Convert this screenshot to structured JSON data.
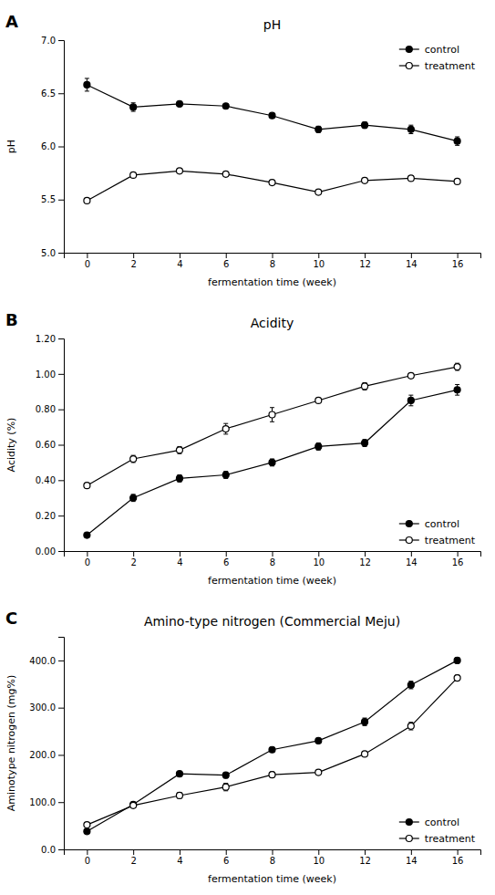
{
  "chart_data": [
    {
      "type": "line",
      "title": "pH",
      "xlabel": "fermentation time (week)",
      "ylabel": "pH",
      "annotations": [
        "A"
      ],
      "x": [
        0,
        2,
        4,
        6,
        8,
        10,
        12,
        14,
        16
      ],
      "xlim": [
        -1,
        17
      ],
      "xticks": [
        0,
        2,
        4,
        6,
        8,
        10,
        12,
        14,
        16
      ],
      "ylim": [
        5.0,
        7.0
      ],
      "yticks": [
        {
          "value": 5.0,
          "label": "5.0"
        },
        5.5,
        {
          "value": 6.0,
          "label": "6.0"
        },
        6.5,
        {
          "value": 7.0,
          "label": "7.0"
        }
      ],
      "grid": false,
      "legend": "upper right",
      "series": [
        {
          "name": "control",
          "color": "#000000",
          "marker": "circle",
          "values": [
            6.58,
            6.37,
            6.4,
            6.38,
            6.29,
            6.16,
            6.2,
            6.16,
            6.05
          ],
          "errors": [
            0.06,
            0.04,
            0.02,
            0.02,
            0.02,
            0.03,
            0.03,
            0.04,
            0.04
          ]
        },
        {
          "name": "treatment",
          "color": "#000000",
          "marker": "open-circle",
          "values": [
            5.49,
            5.73,
            5.77,
            5.74,
            5.66,
            5.57,
            5.68,
            5.7,
            5.67
          ],
          "errors": [
            0.01,
            0.01,
            0.01,
            0.01,
            0.01,
            0.01,
            0.01,
            0.01,
            0.01
          ]
        }
      ]
    },
    {
      "type": "line",
      "title": "Acidity",
      "xlabel": "fermentation time (week)",
      "ylabel": "Acidity (%)",
      "annotations": [
        "B"
      ],
      "x": [
        0,
        2,
        4,
        6,
        8,
        10,
        12,
        14,
        16
      ],
      "xlim": [
        -1,
        17
      ],
      "xticks": [
        0,
        2,
        4,
        6,
        8,
        10,
        12,
        14,
        16
      ],
      "ylim": [
        0.0,
        1.2
      ],
      "yticks": [
        {
          "value": 0.0,
          "label": "0.00"
        },
        {
          "value": 0.2,
          "label": "0.20"
        },
        {
          "value": 0.4,
          "label": "0.40"
        },
        {
          "value": 0.6,
          "label": "0.60"
        },
        {
          "value": 0.8,
          "label": "0.80"
        },
        {
          "value": 1.0,
          "label": "1.00"
        },
        {
          "value": 1.2,
          "label": "1.20"
        }
      ],
      "grid": false,
      "legend": "lower right",
      "series": [
        {
          "name": "control",
          "color": "#000000",
          "marker": "circle",
          "values": [
            0.09,
            0.3,
            0.41,
            0.43,
            0.5,
            0.59,
            0.61,
            0.85,
            0.91
          ],
          "errors": [
            0.01,
            0.02,
            0.02,
            0.02,
            0.02,
            0.02,
            0.02,
            0.03,
            0.03
          ]
        },
        {
          "name": "treatment",
          "color": "#000000",
          "marker": "open-circle",
          "values": [
            0.37,
            0.52,
            0.57,
            0.69,
            0.77,
            0.85,
            0.93,
            0.99,
            1.04
          ],
          "errors": [
            0.01,
            0.02,
            0.02,
            0.03,
            0.04,
            0.01,
            0.02,
            0.01,
            0.02
          ]
        }
      ]
    },
    {
      "type": "line",
      "title": "Amino-type nitrogen (Commercial Meju)",
      "xlabel": "fermentation time (week)",
      "ylabel": "Aminotype nitrogen (mg%)",
      "annotations": [
        "C"
      ],
      "x": [
        0,
        2,
        4,
        6,
        8,
        10,
        12,
        14,
        16
      ],
      "xlim": [
        -1,
        17
      ],
      "xticks": [
        0,
        2,
        4,
        6,
        8,
        10,
        12,
        14,
        16
      ],
      "ylim": [
        0.0,
        450.0
      ],
      "yticks": [
        {
          "value": 0.0,
          "label": "0.0"
        },
        {
          "value": 100.0,
          "label": "100.0"
        },
        {
          "value": 200.0,
          "label": "200.0"
        },
        {
          "value": 300.0,
          "label": "300.0"
        },
        {
          "value": 400.0,
          "label": "400.0"
        }
      ],
      "grid": false,
      "legend": "lower right",
      "series": [
        {
          "name": "control",
          "color": "#000000",
          "marker": "circle",
          "values": [
            38.0,
            95.0,
            160.0,
            157.0,
            211.0,
            230.0,
            270.0,
            348.0,
            400.0
          ],
          "errors": [
            3.0,
            4.0,
            5.0,
            6.0,
            5.0,
            5.0,
            8.0,
            8.0,
            6.0
          ]
        },
        {
          "name": "treatment",
          "color": "#000000",
          "marker": "open-circle",
          "values": [
            52.0,
            93.0,
            114.0,
            132.0,
            158.0,
            163.0,
            202.0,
            261.0,
            363.0
          ],
          "errors": [
            3.0,
            4.0,
            6.0,
            8.0,
            6.0,
            4.0,
            4.0,
            8.0,
            6.0
          ]
        }
      ]
    }
  ]
}
